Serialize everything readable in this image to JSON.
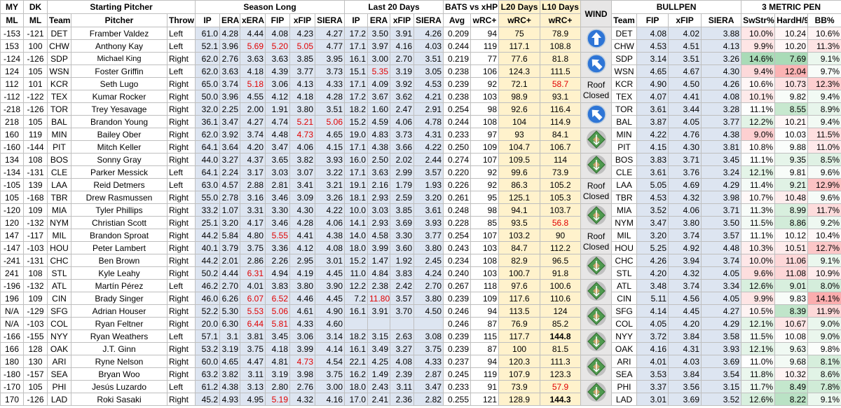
{
  "header": {
    "groups": [
      {
        "label": "MY",
        "span": 1
      },
      {
        "label": "DK",
        "span": 1
      },
      {
        "label": "Starting Pitcher",
        "span": 3
      },
      {
        "label": "Season Long",
        "span": 6
      },
      {
        "label": "Last 20 Days",
        "span": 4
      },
      {
        "label": "BATS vs xHP",
        "span": 2
      },
      {
        "label": "L20 Days",
        "span": 1
      },
      {
        "label": "L10 Days",
        "span": 1
      },
      {
        "label": "WIND",
        "span": 1
      },
      {
        "label": "BULLPEN",
        "span": 4
      },
      {
        "label": "3 METRIC PEN",
        "span": 3
      }
    ],
    "columns": [
      "ML",
      "ML",
      "Team",
      "Pitcher",
      "Throw",
      "IP",
      "ERA",
      "xERA",
      "FIP",
      "xFIP",
      "SIERA",
      "IP",
      "ERA",
      "xFIP",
      "SIERA",
      "Avg",
      "wRC+",
      "wRC+",
      "wRC+",
      "Team",
      "FIP",
      "xFIP",
      "SIERA",
      "SwStr%",
      "HardH/9",
      "BB%"
    ]
  },
  "rows": [
    [
      "-153",
      "-121",
      "DET",
      "Framber Valdez",
      "Left",
      "61.0",
      "4.28",
      "4.44",
      "4.08",
      "4.23",
      "4.27",
      "17.2",
      "3.50",
      "3.91",
      "4.26",
      "0.209",
      "94",
      "75",
      "78.9",
      "DET",
      "4.08",
      "4.02",
      "3.88",
      "10.0%",
      "10.24",
      "10.6%"
    ],
    [
      "153",
      "100",
      "CHW",
      "Anthony Kay",
      "Left",
      "52.1",
      "3.96",
      "5.69",
      "5.20",
      "5.05",
      "4.77",
      "17.1",
      "3.97",
      "4.16",
      "4.03",
      "0.244",
      "119",
      "117.1",
      "108.8",
      "CHW",
      "4.53",
      "4.51",
      "4.13",
      "9.9%",
      "10.20",
      "11.3%"
    ],
    [
      "-124",
      "-126",
      "SDP",
      "Michael King",
      "Right",
      "62.0",
      "2.76",
      "3.63",
      "3.63",
      "3.85",
      "3.95",
      "16.1",
      "3.00",
      "2.70",
      "3.51",
      "0.219",
      "77",
      "77.6",
      "81.8",
      "SDP",
      "3.14",
      "3.51",
      "3.26",
      "14.6%",
      "7.69",
      "9.1%"
    ],
    [
      "124",
      "105",
      "WSN",
      "Foster Griffin",
      "Left",
      "62.0",
      "3.63",
      "4.18",
      "4.39",
      "3.77",
      "3.73",
      "15.1",
      "5.35",
      "3.19",
      "3.05",
      "0.238",
      "106",
      "124.3",
      "111.5",
      "WSN",
      "4.65",
      "4.67",
      "4.30",
      "9.4%",
      "12.04",
      "9.7%"
    ],
    [
      "112",
      "101",
      "KCR",
      "Seth Lugo",
      "Right",
      "65.0",
      "3.74",
      "5.18",
      "3.06",
      "4.13",
      "4.33",
      "17.1",
      "4.09",
      "3.92",
      "4.53",
      "0.239",
      "92",
      "72.1",
      "58.7",
      "KCR",
      "4.90",
      "4.50",
      "4.26",
      "10.6%",
      "10.73",
      "12.3%"
    ],
    [
      "-112",
      "-122",
      "TEX",
      "Kumar Rocker",
      "Right",
      "50.0",
      "3.96",
      "4.55",
      "4.12",
      "4.18",
      "4.28",
      "17.2",
      "3.67",
      "3.62",
      "4.21",
      "0.238",
      "103",
      "98.9",
      "93.1",
      "TEX",
      "4.07",
      "4.41",
      "4.08",
      "10.1%",
      "9.82",
      "9.4%"
    ],
    [
      "-218",
      "-126",
      "TOR",
      "Trey Yesavage",
      "Right",
      "32.0",
      "2.25",
      "2.00",
      "1.91",
      "3.80",
      "3.51",
      "18.2",
      "1.60",
      "2.47",
      "2.91",
      "0.254",
      "98",
      "92.6",
      "116.4",
      "TOR",
      "3.61",
      "3.44",
      "3.28",
      "11.1%",
      "8.55",
      "8.9%"
    ],
    [
      "218",
      "105",
      "BAL",
      "Brandon Young",
      "Right",
      "36.1",
      "3.47",
      "4.27",
      "4.74",
      "5.21",
      "5.06",
      "15.2",
      "4.59",
      "4.06",
      "4.78",
      "0.244",
      "108",
      "104",
      "114.9",
      "BAL",
      "3.87",
      "4.05",
      "3.77",
      "12.2%",
      "10.21",
      "9.4%"
    ],
    [
      "160",
      "119",
      "MIN",
      "Bailey Ober",
      "Right",
      "62.0",
      "3.92",
      "3.74",
      "4.48",
      "4.73",
      "4.65",
      "19.0",
      "4.83",
      "3.73",
      "4.31",
      "0.233",
      "97",
      "93",
      "84.1",
      "MIN",
      "4.22",
      "4.76",
      "4.38",
      "9.0%",
      "10.03",
      "11.5%"
    ],
    [
      "-160",
      "-144",
      "PIT",
      "Mitch Keller",
      "Right",
      "64.1",
      "3.64",
      "4.20",
      "3.47",
      "4.06",
      "4.15",
      "17.1",
      "4.38",
      "3.66",
      "4.22",
      "0.250",
      "109",
      "104.7",
      "106.7",
      "PIT",
      "4.15",
      "4.30",
      "3.81",
      "10.8%",
      "9.88",
      "11.0%"
    ],
    [
      "134",
      "108",
      "BOS",
      "Sonny Gray",
      "Right",
      "44.0",
      "3.27",
      "4.37",
      "3.65",
      "3.82",
      "3.93",
      "16.0",
      "2.50",
      "2.02",
      "2.44",
      "0.274",
      "107",
      "109.5",
      "114",
      "BOS",
      "3.83",
      "3.71",
      "3.45",
      "11.1%",
      "9.35",
      "8.5%"
    ],
    [
      "-134",
      "-131",
      "CLE",
      "Parker Messick",
      "Left",
      "64.1",
      "2.24",
      "3.17",
      "3.03",
      "3.07",
      "3.22",
      "17.1",
      "3.63",
      "2.99",
      "3.57",
      "0.220",
      "92",
      "99.6",
      "73.9",
      "CLE",
      "3.61",
      "3.76",
      "3.24",
      "12.1%",
      "9.81",
      "9.6%"
    ],
    [
      "-105",
      "139",
      "LAA",
      "Reid Detmers",
      "Left",
      "63.0",
      "4.57",
      "2.88",
      "2.81",
      "3.41",
      "3.21",
      "19.1",
      "2.16",
      "1.79",
      "1.93",
      "0.226",
      "92",
      "86.3",
      "105.2",
      "LAA",
      "5.05",
      "4.69",
      "4.29",
      "11.4%",
      "9.21",
      "12.9%"
    ],
    [
      "105",
      "-168",
      "TBR",
      "Drew Rasmussen",
      "Right",
      "55.0",
      "2.78",
      "3.16",
      "3.46",
      "3.09",
      "3.26",
      "18.1",
      "2.93",
      "2.59",
      "3.20",
      "0.261",
      "95",
      "125.1",
      "105.3",
      "TBR",
      "4.53",
      "4.32",
      "3.98",
      "10.7%",
      "10.48",
      "9.6%"
    ],
    [
      "-120",
      "109",
      "MIA",
      "Tyler Phillips",
      "Right",
      "33.2",
      "1.07",
      "3.31",
      "3.30",
      "4.30",
      "4.22",
      "10.0",
      "3.03",
      "3.85",
      "3.61",
      "0.248",
      "98",
      "94.1",
      "103.7",
      "MIA",
      "3.52",
      "4.06",
      "3.71",
      "11.3%",
      "8.99",
      "11.7%"
    ],
    [
      "120",
      "-132",
      "NYM",
      "Christian Scott",
      "Right",
      "25.1",
      "3.20",
      "4.17",
      "3.46",
      "4.28",
      "4.06",
      "14.1",
      "2.93",
      "3.69",
      "3.93",
      "0.228",
      "85",
      "93.5",
      "56.8",
      "NYM",
      "3.47",
      "3.80",
      "3.50",
      "11.5%",
      "8.86",
      "9.2%"
    ],
    [
      "147",
      "-117",
      "MIL",
      "Brandon Sproat",
      "Right",
      "44.2",
      "5.84",
      "4.80",
      "5.55",
      "4.41",
      "4.38",
      "14.0",
      "4.58",
      "3.30",
      "3.77",
      "0.254",
      "107",
      "103.2",
      "90",
      "MIL",
      "3.20",
      "3.74",
      "3.57",
      "11.1%",
      "10.12",
      "10.4%"
    ],
    [
      "-147",
      "-103",
      "HOU",
      "Peter Lambert",
      "Right",
      "40.1",
      "3.79",
      "3.75",
      "3.36",
      "4.12",
      "4.08",
      "18.0",
      "3.99",
      "3.60",
      "3.80",
      "0.243",
      "103",
      "84.7",
      "112.2",
      "HOU",
      "5.25",
      "4.92",
      "4.48",
      "10.3%",
      "10.51",
      "12.7%"
    ],
    [
      "-241",
      "-131",
      "CHC",
      "Ben Brown",
      "Right",
      "44.2",
      "2.01",
      "2.86",
      "2.26",
      "2.95",
      "3.01",
      "15.2",
      "1.47",
      "1.92",
      "2.45",
      "0.234",
      "108",
      "82.9",
      "96.5",
      "CHC",
      "4.26",
      "3.94",
      "3.74",
      "10.0%",
      "11.06",
      "9.1%"
    ],
    [
      "241",
      "108",
      "STL",
      "Kyle Leahy",
      "Right",
      "50.2",
      "4.44",
      "6.31",
      "4.94",
      "4.19",
      "4.45",
      "11.0",
      "4.84",
      "3.83",
      "4.24",
      "0.240",
      "103",
      "100.7",
      "91.8",
      "STL",
      "4.20",
      "4.32",
      "4.05",
      "9.6%",
      "11.08",
      "10.9%"
    ],
    [
      "-196",
      "-132",
      "ATL",
      "Martín Pérez",
      "Left",
      "46.2",
      "2.70",
      "4.01",
      "3.83",
      "3.80",
      "3.90",
      "12.2",
      "2.38",
      "2.42",
      "2.70",
      "0.267",
      "118",
      "97.6",
      "100.6",
      "ATL",
      "3.48",
      "3.74",
      "3.34",
      "12.6%",
      "9.01",
      "8.0%"
    ],
    [
      "196",
      "109",
      "CIN",
      "Brady Singer",
      "Right",
      "46.0",
      "6.26",
      "6.07",
      "6.52",
      "4.46",
      "4.45",
      "7.2",
      "11.80",
      "3.57",
      "3.80",
      "0.239",
      "109",
      "117.6",
      "110.6",
      "CIN",
      "5.11",
      "4.56",
      "4.05",
      "9.9%",
      "9.83",
      "14.1%"
    ],
    [
      "N/A",
      "-129",
      "SFG",
      "Adrian Houser",
      "Right",
      "52.2",
      "5.30",
      "5.53",
      "5.06",
      "4.61",
      "4.90",
      "16.1",
      "3.91",
      "3.70",
      "4.50",
      "0.246",
      "94",
      "113.5",
      "124",
      "SFG",
      "4.14",
      "4.45",
      "4.27",
      "10.5%",
      "8.39",
      "11.9%"
    ],
    [
      "N/A",
      "-103",
      "COL",
      "Ryan Feltner",
      "Right",
      "20.0",
      "6.30",
      "6.44",
      "5.81",
      "4.33",
      "4.60",
      null,
      null,
      null,
      null,
      "0.246",
      "87",
      "76.9",
      "85.2",
      "COL",
      "4.05",
      "4.20",
      "4.29",
      "12.1%",
      "10.67",
      "9.0%"
    ],
    [
      "-166",
      "-155",
      "NYY",
      "Ryan Weathers",
      "Left",
      "57.1",
      "3.1",
      "3.81",
      "3.45",
      "3.06",
      "3.14",
      "18.2",
      "3.15",
      "2.63",
      "3.08",
      "0.239",
      "115",
      "117.7",
      "144.8",
      "NYY",
      "3.72",
      "3.84",
      "3.58",
      "11.5%",
      "10.08",
      "9.0%"
    ],
    [
      "166",
      "128",
      "OAK",
      "J.T. Ginn",
      "Right",
      "53.2",
      "3.19",
      "3.75",
      "4.18",
      "3.99",
      "4.14",
      "16.1",
      "3.49",
      "3.27",
      "3.75",
      "0.239",
      "87",
      "100",
      "81.5",
      "OAK",
      "4.16",
      "4.31",
      "3.93",
      "12.1%",
      "9.63",
      "9.8%"
    ],
    [
      "180",
      "130",
      "ARI",
      "Ryne Nelson",
      "Right",
      "60.0",
      "4.65",
      "4.47",
      "4.81",
      "4.73",
      "4.54",
      "22.1",
      "4.25",
      "4.08",
      "4.33",
      "0.237",
      "94",
      "120.3",
      "111.3",
      "ARI",
      "4.01",
      "4.03",
      "3.69",
      "11.0%",
      "9.68",
      "8.1%"
    ],
    [
      "-180",
      "-157",
      "SEA",
      "Bryan Woo",
      "Right",
      "63.2",
      "3.82",
      "3.11",
      "3.19",
      "3.98",
      "3.75",
      "16.2",
      "1.49",
      "2.39",
      "2.87",
      "0.245",
      "119",
      "107.9",
      "123.3",
      "SEA",
      "3.53",
      "3.84",
      "3.54",
      "11.8%",
      "10.32",
      "8.6%"
    ],
    [
      "-170",
      "105",
      "PHI",
      "Jesús Luzardo",
      "Left",
      "61.2",
      "4.38",
      "3.13",
      "2.80",
      "2.76",
      "3.00",
      "18.0",
      "2.43",
      "3.11",
      "3.47",
      "0.233",
      "91",
      "73.9",
      "57.9",
      "PHI",
      "3.37",
      "3.56",
      "3.15",
      "11.7%",
      "8.49",
      "7.8%"
    ],
    [
      "170",
      "-126",
      "LAD",
      "Roki Sasaki",
      "Right",
      "45.2",
      "4.93",
      "4.95",
      "5.19",
      "4.32",
      "4.16",
      "17.0",
      "2.41",
      "2.36",
      "2.82",
      "0.255",
      "121",
      "128.9",
      "144.3",
      "LAD",
      "3.01",
      "3.69",
      "3.52",
      "12.6%",
      "8.22",
      "9.1%"
    ]
  ],
  "wind": [
    {
      "kind": "arrow",
      "direction": 180
    },
    {
      "kind": "arrow",
      "direction": 135
    },
    {
      "kind": "roof",
      "label": "Roof Closed"
    },
    {
      "kind": "arrow",
      "direction": 135
    },
    {
      "kind": "field"
    },
    {
      "kind": "field"
    },
    {
      "kind": "roof",
      "label": "Roof Closed"
    },
    {
      "kind": "field"
    },
    {
      "kind": "roof",
      "label": "Roof Closed"
    },
    {
      "kind": "field"
    },
    {
      "kind": "field"
    },
    {
      "kind": "field"
    },
    {
      "kind": "field"
    },
    {
      "kind": "field"
    },
    {
      "kind": "field"
    }
  ]
}
